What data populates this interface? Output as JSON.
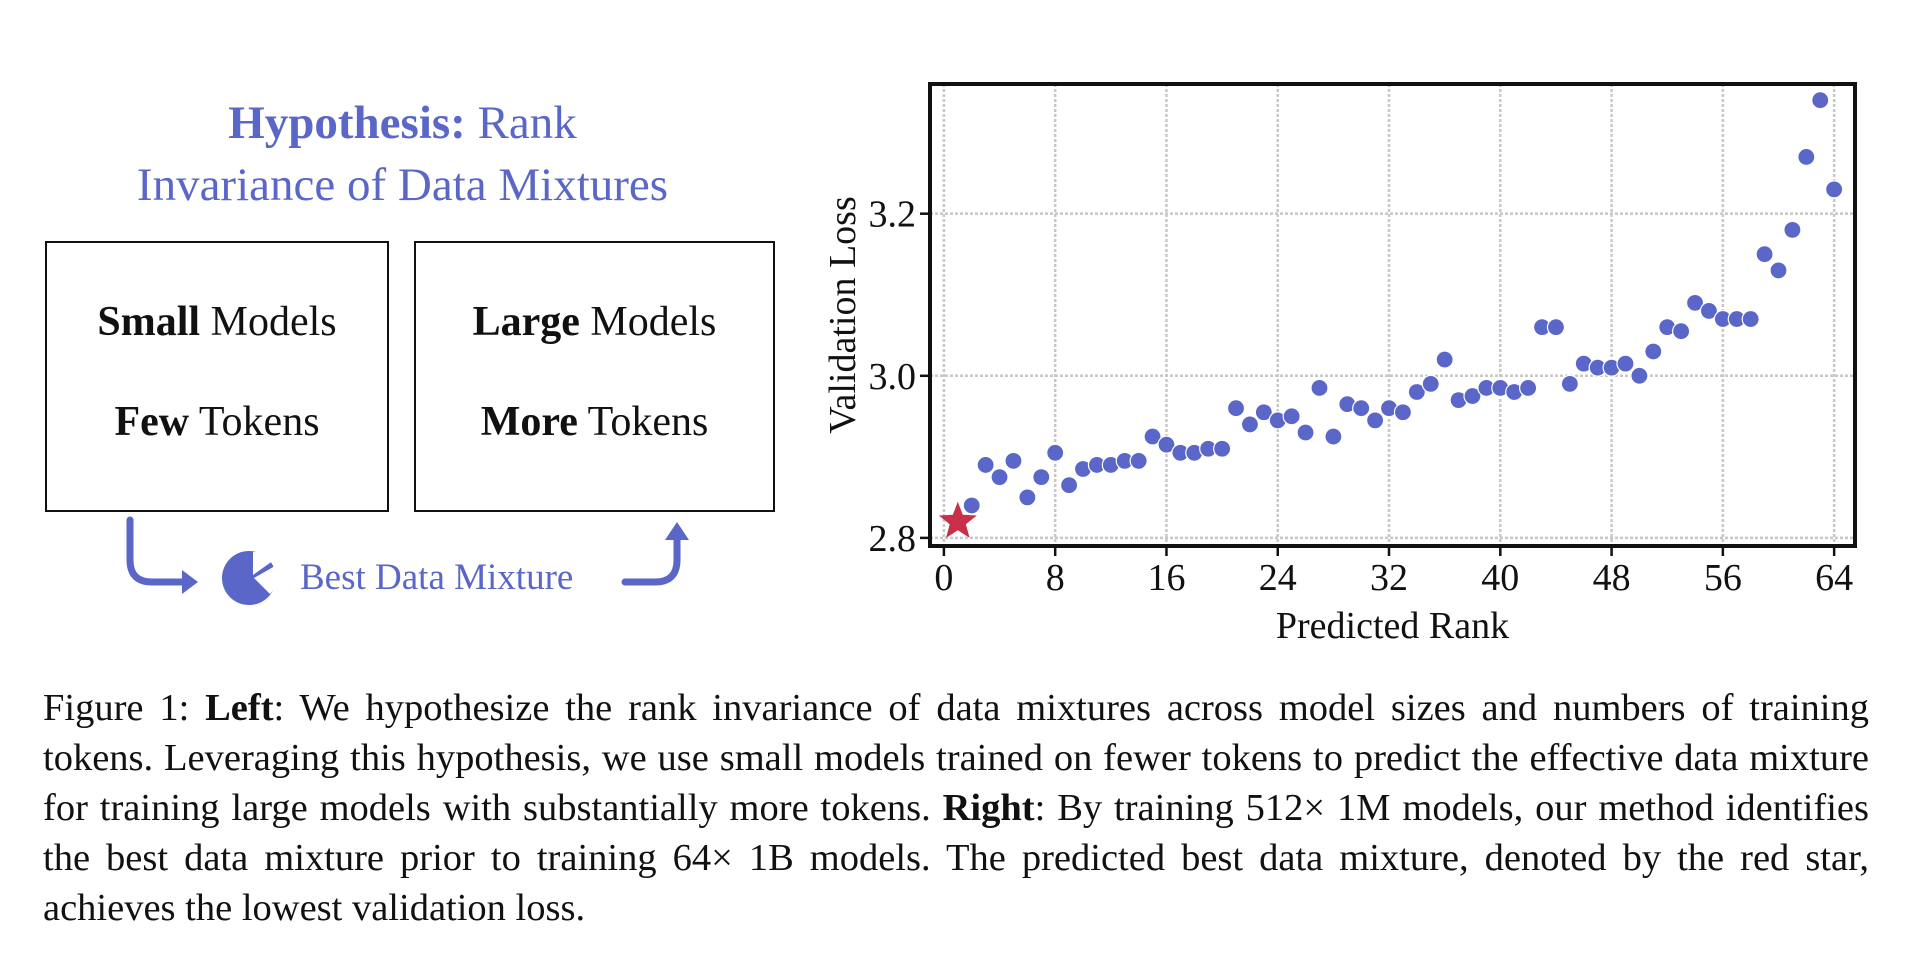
{
  "figure": {
    "hypothesis": {
      "title_bold": "Hypothesis:",
      "title_rest_line1": "Rank",
      "title_line2": "Invariance of Data Mixtures"
    },
    "left_box": {
      "line1_bold": "Small",
      "line1_rest": " Models",
      "line2_bold": "Few",
      "line2_rest": " Tokens"
    },
    "right_box": {
      "line1_bold": "Large",
      "line1_rest": " Models",
      "line2_bold": "More",
      "line2_rest": " Tokens"
    },
    "mixture_label": "Best Data Mixture",
    "mixture_icon": "pie-chart-icon",
    "accent_color": "#5a66c8"
  },
  "chart_data": {
    "type": "scatter",
    "title": "",
    "xlabel": "Predicted Rank",
    "ylabel": "Validation Loss",
    "xlim": [
      -1,
      65.5
    ],
    "ylim": [
      2.79,
      3.36
    ],
    "xticks": [
      0,
      8,
      16,
      24,
      32,
      40,
      48,
      56,
      64
    ],
    "yticks": [
      2.8,
      3.0,
      3.2
    ],
    "ytick_labels": [
      "2.8",
      "3.0",
      "3.2"
    ],
    "grid": true,
    "point_color": "#5a66c8",
    "best_color": "#c8304a",
    "best": {
      "x": 1,
      "y": 2.82
    },
    "points": [
      [
        2,
        2.84
      ],
      [
        3,
        2.89
      ],
      [
        4,
        2.875
      ],
      [
        5,
        2.895
      ],
      [
        6,
        2.85
      ],
      [
        7,
        2.875
      ],
      [
        8,
        2.905
      ],
      [
        9,
        2.865
      ],
      [
        10,
        2.885
      ],
      [
        11,
        2.89
      ],
      [
        12,
        2.89
      ],
      [
        13,
        2.895
      ],
      [
        14,
        2.895
      ],
      [
        15,
        2.925
      ],
      [
        16,
        2.915
      ],
      [
        17,
        2.905
      ],
      [
        18,
        2.905
      ],
      [
        19,
        2.91
      ],
      [
        20,
        2.91
      ],
      [
        21,
        2.96
      ],
      [
        22,
        2.94
      ],
      [
        23,
        2.955
      ],
      [
        24,
        2.945
      ],
      [
        25,
        2.95
      ],
      [
        26,
        2.93
      ],
      [
        27,
        2.985
      ],
      [
        28,
        2.925
      ],
      [
        29,
        2.965
      ],
      [
        30,
        2.96
      ],
      [
        31,
        2.945
      ],
      [
        32,
        2.96
      ],
      [
        33,
        2.955
      ],
      [
        34,
        2.98
      ],
      [
        35,
        2.99
      ],
      [
        36,
        3.02
      ],
      [
        37,
        2.97
      ],
      [
        38,
        2.975
      ],
      [
        39,
        2.985
      ],
      [
        40,
        2.985
      ],
      [
        41,
        2.98
      ],
      [
        42,
        2.985
      ],
      [
        43,
        3.06
      ],
      [
        44,
        3.06
      ],
      [
        45,
        2.99
      ],
      [
        46,
        3.015
      ],
      [
        47,
        3.01
      ],
      [
        48,
        3.01
      ],
      [
        49,
        3.015
      ],
      [
        50,
        3.0
      ],
      [
        51,
        3.03
      ],
      [
        52,
        3.06
      ],
      [
        53,
        3.055
      ],
      [
        54,
        3.09
      ],
      [
        55,
        3.08
      ],
      [
        56,
        3.07
      ],
      [
        57,
        3.07
      ],
      [
        58,
        3.07
      ],
      [
        59,
        3.15
      ],
      [
        60,
        3.13
      ],
      [
        61,
        3.18
      ],
      [
        62,
        3.27
      ],
      [
        63,
        3.34
      ],
      [
        64,
        3.23
      ]
    ]
  },
  "caption": {
    "prefix": "Figure 1: ",
    "left_bold": "Left",
    "left_text": ": We hypothesize the rank invariance of data mixtures across model sizes and numbers of training tokens. Leveraging this hypothesis, we use small models trained on fewer tokens to predict the effective data mixture for training large models with substantially more tokens. ",
    "right_bold": "Right",
    "right_text": ": By training 512× 1M models, our method identifies the best data mixture prior to training 64× 1B models. The predicted best data mixture, denoted by the red star, achieves the lowest validation loss."
  }
}
